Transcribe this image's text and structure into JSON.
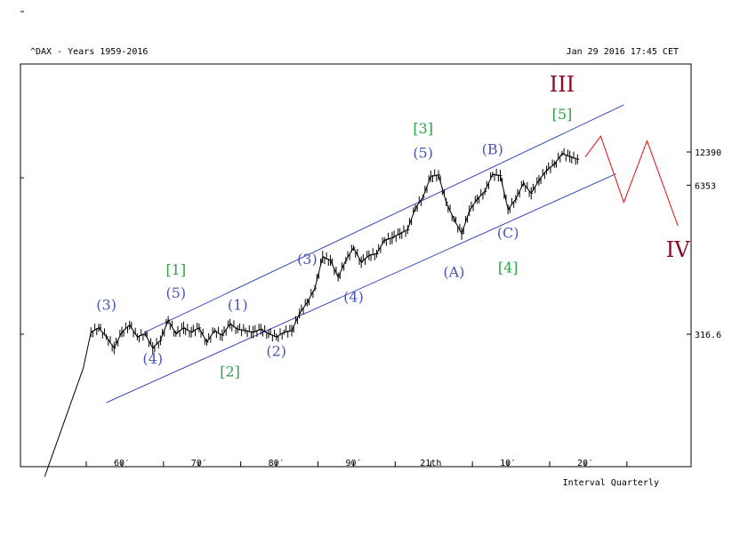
{
  "chart_data": {
    "type": "line",
    "title": "^DAX - Years 1959-2016",
    "timestamp": "Jan 29 2016 17:45 CET",
    "interval_label": "Interval Quarterly",
    "y_scale": "log",
    "x_ticks": [
      "60′",
      "70′",
      "80′",
      "90′",
      "21th",
      "10′",
      "20′"
    ],
    "x_tick_years": [
      1960,
      1970,
      1980,
      1990,
      2000,
      2010,
      2020
    ],
    "y_ticks": [
      "12390",
      "6353",
      "316.6"
    ],
    "y_tick_values": [
      12390,
      6353,
      316.6
    ],
    "series": [
      {
        "values": [
          [
            1950,
            18
          ],
          [
            1955,
            160
          ],
          [
            1956,
            330
          ],
          [
            1957,
            360
          ],
          [
            1958,
            300
          ],
          [
            1959,
            240
          ],
          [
            1960,
            330
          ],
          [
            1961,
            380
          ],
          [
            1962,
            300
          ],
          [
            1963,
            320
          ],
          [
            1964,
            240
          ],
          [
            1965,
            280
          ],
          [
            1966,
            420
          ],
          [
            1967,
            320
          ],
          [
            1968,
            360
          ],
          [
            1969,
            330
          ],
          [
            1970,
            360
          ],
          [
            1971,
            270
          ],
          [
            1972,
            340
          ],
          [
            1973,
            310
          ],
          [
            1974,
            390
          ],
          [
            1975,
            350
          ],
          [
            1976,
            340
          ],
          [
            1977,
            330
          ],
          [
            1978,
            350
          ],
          [
            1979,
            320
          ],
          [
            1980,
            300
          ],
          [
            1981,
            330
          ],
          [
            1982,
            340
          ],
          [
            1983,
            480
          ],
          [
            1984,
            600
          ],
          [
            1985,
            800
          ],
          [
            1986,
            1500
          ],
          [
            1987,
            1400
          ],
          [
            1988,
            1000
          ],
          [
            1989,
            1400
          ],
          [
            1990,
            1800
          ],
          [
            1991,
            1350
          ],
          [
            1992,
            1550
          ],
          [
            1993,
            1600
          ],
          [
            1994,
            2100
          ],
          [
            1995,
            2200
          ],
          [
            1996,
            2400
          ],
          [
            1997,
            2600
          ],
          [
            1998,
            4000
          ],
          [
            1999,
            5000
          ],
          [
            2000,
            7600
          ],
          [
            2001,
            7800
          ],
          [
            2002,
            4500
          ],
          [
            2003,
            3200
          ],
          [
            2004,
            2400
          ],
          [
            2005,
            3800
          ],
          [
            2006,
            4800
          ],
          [
            2007,
            5600
          ],
          [
            2008,
            7900
          ],
          [
            2009,
            7700
          ],
          [
            2010,
            3900
          ],
          [
            2011,
            4800
          ],
          [
            2012,
            6600
          ],
          [
            2013,
            5400
          ],
          [
            2014,
            7000
          ],
          [
            2015,
            8600
          ],
          [
            2016,
            9700
          ],
          [
            2017,
            12000
          ],
          [
            2018,
            11300
          ],
          [
            2019,
            10700
          ]
        ]
      }
    ],
    "channel": {
      "upper": [
        [
          1963,
          330
        ],
        [
          2025,
          32000
        ]
      ],
      "lower": [
        [
          1958,
          80
        ],
        [
          2024,
          8000
        ]
      ]
    },
    "projection": [
      [
        2020,
        11200
      ],
      [
        2022,
        17000
      ],
      [
        2025,
        4500
      ],
      [
        2028,
        15500
      ],
      [
        2032,
        2800
      ]
    ],
    "wave_labels": [
      {
        "text": "(3)",
        "x": 1958,
        "y": 520,
        "color": "#4b55b4"
      },
      {
        "text": "(4)",
        "x": 1964,
        "y": 175,
        "color": "#4b55b4"
      },
      {
        "text": "[1]",
        "x": 1967,
        "y": 1050,
        "color": "#2ca148"
      },
      {
        "text": "(5)",
        "x": 1967,
        "y": 660,
        "color": "#4b55b4"
      },
      {
        "text": "(1)",
        "x": 1975,
        "y": 520,
        "color": "#4b55b4"
      },
      {
        "text": "[2]",
        "x": 1974,
        "y": 135,
        "color": "#2ca148"
      },
      {
        "text": "(2)",
        "x": 1980,
        "y": 205,
        "color": "#4b55b4"
      },
      {
        "text": "(3)",
        "x": 1984,
        "y": 1300,
        "color": "#4b55b4"
      },
      {
        "text": "(4)",
        "x": 1990,
        "y": 610,
        "color": "#4b55b4"
      },
      {
        "text": "[3]",
        "x": 1999,
        "y": 18000,
        "color": "#2ca148"
      },
      {
        "text": "(5)",
        "x": 1999,
        "y": 11000,
        "color": "#4b55b4"
      },
      {
        "text": "(A)",
        "x": 2003,
        "y": 1000,
        "color": "#4b55b4"
      },
      {
        "text": "(B)",
        "x": 2008,
        "y": 11800,
        "color": "#4b55b4"
      },
      {
        "text": "(C)",
        "x": 2010,
        "y": 2200,
        "color": "#4b55b4"
      },
      {
        "text": "[4]",
        "x": 2010,
        "y": 1100,
        "color": "#2ca148"
      },
      {
        "text": "[5]",
        "x": 2017,
        "y": 24000,
        "color": "#2ca148"
      },
      {
        "text": "III",
        "x": 2017,
        "y": 42000,
        "color": "#8b0a22",
        "size": "big"
      },
      {
        "text": "IV",
        "x": 2032,
        "y": 1500,
        "color": "#8b0a22",
        "size": "big"
      }
    ],
    "colors": {
      "price": "#000000",
      "channel": "#3846b8",
      "projection": "#e01010",
      "degree_minor": "#4b55b4",
      "degree_intermediate": "#2ca148",
      "degree_primary": "#8b0a22"
    }
  }
}
